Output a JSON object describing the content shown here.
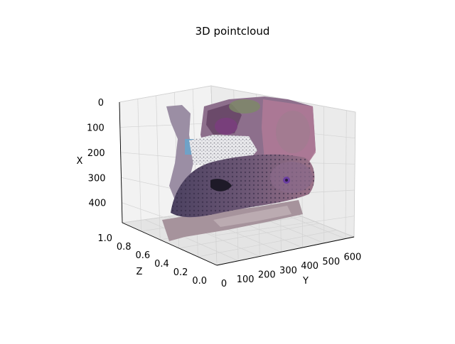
{
  "chart_data": {
    "type": "scatter",
    "title": "3D pointcloud",
    "xlabel": "Y",
    "ylabel": "X",
    "zlabel": "Z",
    "y_axis": {
      "ticks": [
        "0",
        "100",
        "200",
        "300",
        "400",
        "500",
        "600"
      ],
      "range": [
        0,
        640
      ]
    },
    "x_axis": {
      "ticks": [
        "0",
        "100",
        "200",
        "300",
        "400"
      ],
      "range": [
        0,
        480
      ],
      "inverted": true
    },
    "z_axis": {
      "ticks": [
        "1.0",
        "0.8",
        "0.6",
        "0.4",
        "0.2",
        "0.0"
      ],
      "range": [
        0,
        1
      ]
    },
    "grid": true,
    "projection": "3d",
    "content": "colored point cloud of a moray eel over reef",
    "colors": {
      "eel_body": "#5e4f6e",
      "eel_head": "#8a6a8a",
      "eye": "#6b3fa0",
      "reef_pink": "#b07a96",
      "reef_green": "#7d8a66",
      "sand": "#a6939c",
      "water": "#6fa2c7"
    }
  }
}
